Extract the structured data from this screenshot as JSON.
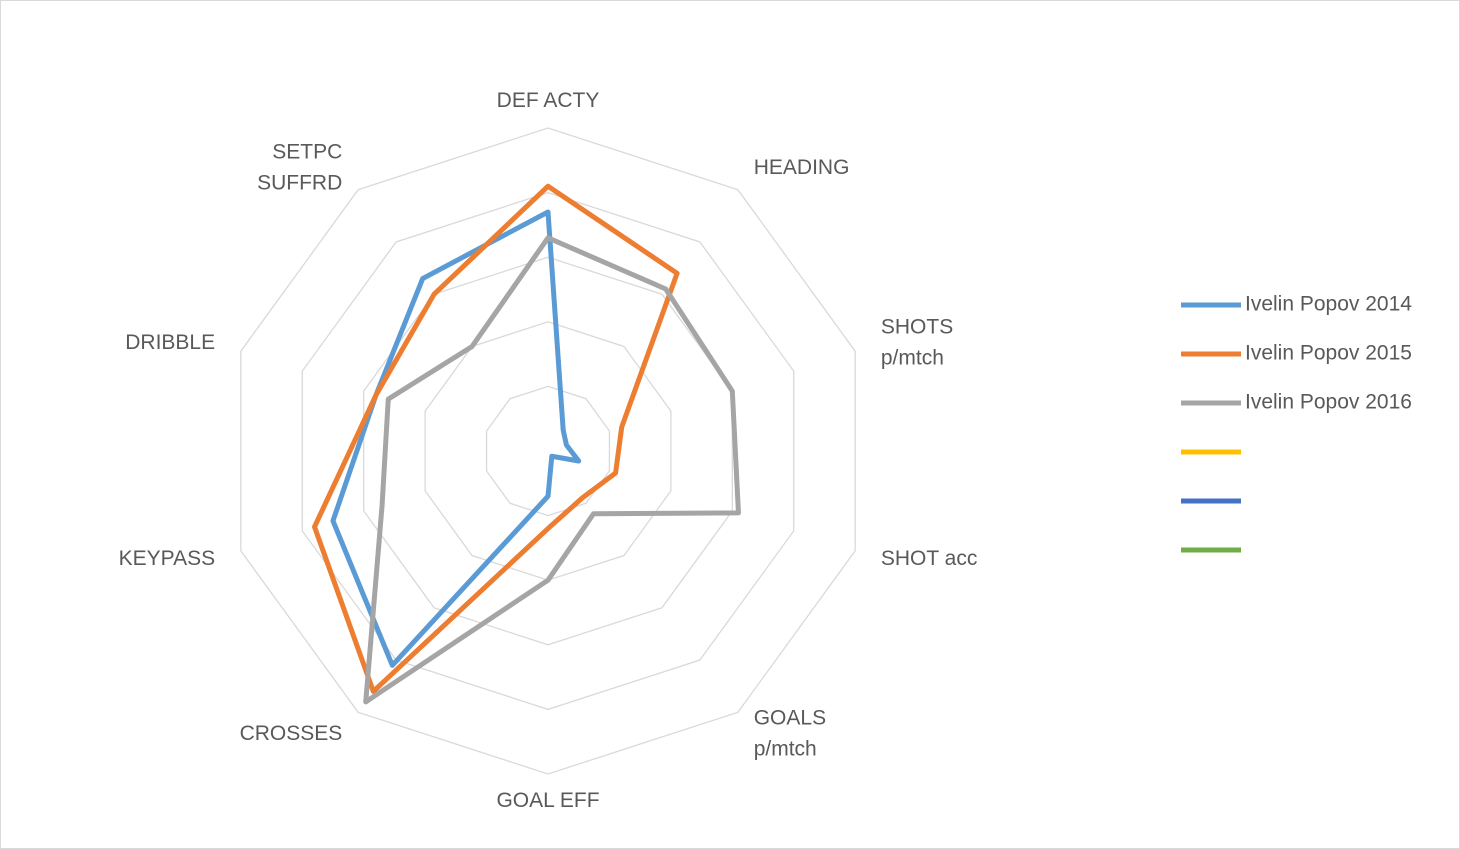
{
  "chart_data": {
    "type": "radar",
    "title": "",
    "axes": [
      [
        "DEF ACTY"
      ],
      [
        "HEADING"
      ],
      [
        "SHOTS",
        "p/mtch"
      ],
      [
        "SHOT acc"
      ],
      [
        "GOALS",
        "p/mtch"
      ],
      [
        "GOAL EFF"
      ],
      [
        "CROSSES"
      ],
      [
        "KEYPASS"
      ],
      [
        "DRIBBLE"
      ],
      [
        "SETPC",
        "SUFFRD"
      ]
    ],
    "grid_levels": 5,
    "range": [
      0,
      5
    ],
    "series": [
      {
        "name": "Ivelin Popov 2014",
        "color": "#5b9bd5",
        "values": [
          3.7,
          0.4,
          0.3,
          0.5,
          0.1,
          0.7,
          4.1,
          3.5,
          2.8,
          3.3
        ]
      },
      {
        "name": "Ivelin Popov 2015",
        "color": "#ed7d31",
        "values": [
          4.1,
          3.4,
          1.2,
          1.1,
          0.9,
          1.2,
          4.6,
          3.8,
          2.8,
          3.0
        ]
      },
      {
        "name": "Ivelin Popov 2016",
        "color": "#a5a5a5",
        "values": [
          3.3,
          3.1,
          3.0,
          3.1,
          1.2,
          2.0,
          4.8,
          2.7,
          2.6,
          2.0
        ]
      },
      {
        "name": "",
        "color": "#ffc000",
        "values": []
      },
      {
        "name": "",
        "color": "#4472c4",
        "values": []
      },
      {
        "name": "",
        "color": "#70ad47",
        "values": []
      }
    ],
    "legend_position": "right"
  }
}
